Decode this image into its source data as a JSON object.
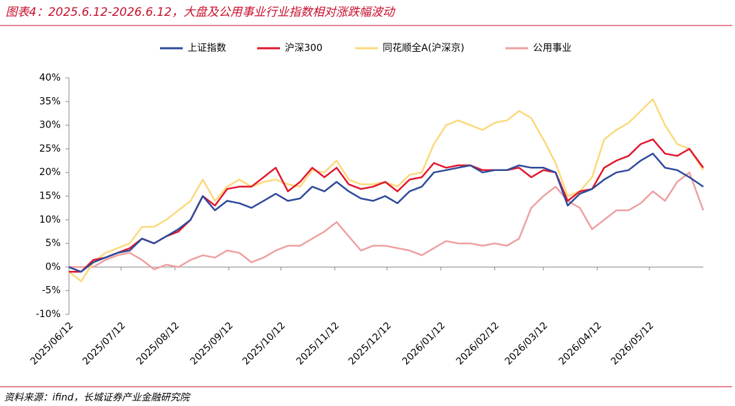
{
  "chart_data": {
    "type": "line",
    "title": "图表4：2025.6.12-2026.6.12，大盘及公用事业行业指数相对涨跌幅波动",
    "source": "资料来源：ifind，长城证券产业金融研究院",
    "x": [
      "2025/06/12",
      "2025/06/19",
      "2025/06/26",
      "2025/07/03",
      "2025/07/10",
      "2025/07/17",
      "2025/07/24",
      "2025/07/31",
      "2025/08/07",
      "2025/08/14",
      "2025/08/21",
      "2025/08/28",
      "2025/09/04",
      "2025/09/11",
      "2025/09/18",
      "2025/09/25",
      "2025/10/02",
      "2025/10/09",
      "2025/10/16",
      "2025/10/23",
      "2025/10/30",
      "2025/11/06",
      "2025/11/13",
      "2025/11/20",
      "2025/11/27",
      "2025/12/04",
      "2025/12/11",
      "2025/12/18",
      "2025/12/25",
      "2026/01/01",
      "2026/01/08",
      "2026/01/15",
      "2026/01/22",
      "2026/01/29",
      "2026/02/05",
      "2026/02/12",
      "2026/02/19",
      "2026/02/26",
      "2026/03/05",
      "2026/03/12",
      "2026/03/19",
      "2026/03/26",
      "2026/04/02",
      "2026/04/09",
      "2026/04/16",
      "2026/04/23",
      "2026/04/30",
      "2026/05/07",
      "2026/05/14",
      "2026/05/21",
      "2026/05/28",
      "2026/06/04",
      "2026/06/12"
    ],
    "xlim": [
      "2025/06/12",
      "2026/06/12"
    ],
    "xticks": [
      "2025/06/12",
      "2025/07/12",
      "2025/08/12",
      "2025/09/12",
      "2025/10/12",
      "2025/11/12",
      "2025/12/12",
      "2026/01/12",
      "2026/02/12",
      "2026/03/12",
      "2026/04/12",
      "2026/05/12"
    ],
    "ylim": [
      -10,
      40
    ],
    "yticks": [
      {
        "value": -10,
        "label": "-10%"
      },
      {
        "value": -5,
        "label": "-5%"
      },
      {
        "value": 0,
        "label": "0%"
      },
      {
        "value": 5,
        "label": "5%"
      },
      {
        "value": 10,
        "label": "10%"
      },
      {
        "value": 15,
        "label": "15%"
      },
      {
        "value": 20,
        "label": "20%"
      },
      {
        "value": 25,
        "label": "25%"
      },
      {
        "value": 30,
        "label": "30%"
      },
      {
        "value": 35,
        "label": "35%"
      },
      {
        "value": 40,
        "label": "40%"
      }
    ],
    "series": [
      {
        "name": "上证指数",
        "color": "#2e4a9a",
        "values": [
          0,
          -1,
          1,
          2,
          3,
          3.5,
          6,
          5,
          6.5,
          8,
          10,
          15,
          12,
          14,
          13.5,
          12.5,
          14,
          15.5,
          14,
          14.5,
          17,
          16,
          18,
          16,
          14.5,
          14,
          15,
          13.5,
          16,
          17,
          20,
          20.5,
          21,
          21.5,
          20,
          20.5,
          20.5,
          21.5,
          21,
          21,
          20,
          13,
          15.5,
          16.5,
          18.5,
          20,
          20.5,
          22.5,
          24,
          21,
          20.5,
          19,
          17
        ]
      },
      {
        "name": "沪深300",
        "color": "#e0182d",
        "values": [
          -1,
          -1,
          1.5,
          2,
          3,
          4,
          6,
          5,
          6.5,
          7.5,
          10,
          15,
          13,
          16.5,
          17,
          17,
          19,
          21,
          16,
          18,
          21,
          19,
          21,
          17.5,
          16.5,
          17,
          18,
          16,
          18.5,
          19,
          22,
          21,
          21.5,
          21.5,
          20.5,
          20.5,
          20.5,
          21,
          19,
          20.5,
          20,
          14,
          16,
          16.5,
          21,
          22.5,
          23.5,
          26,
          27,
          24,
          23.5,
          25,
          21
        ]
      },
      {
        "name": "同花顺全A(沪深京)",
        "color": "#fbd97a",
        "values": [
          -1,
          -3,
          1,
          3,
          4,
          5,
          8.5,
          8.5,
          10,
          12,
          14,
          18.5,
          14,
          17,
          18.5,
          17,
          18,
          18.5,
          17.5,
          17,
          20.5,
          20,
          22.5,
          18.5,
          17.5,
          17.5,
          18,
          17,
          19.5,
          20,
          26,
          30,
          31,
          30,
          29,
          30.5,
          31,
          33,
          31.5,
          27,
          22,
          15,
          16,
          19,
          27,
          29,
          30.5,
          33,
          35.5,
          30,
          26,
          25,
          20.5
        ]
      },
      {
        "name": "公用事业",
        "color": "#eea0a0",
        "values": [
          0,
          0,
          0,
          1.5,
          2.5,
          3,
          1.5,
          -0.5,
          0.5,
          0,
          1.5,
          2.5,
          2,
          3.5,
          3,
          1,
          2,
          3.5,
          4.5,
          4.5,
          6,
          7.5,
          9.5,
          6.5,
          3.5,
          4.5,
          4.5,
          4,
          3.5,
          2.5,
          4,
          5.5,
          5,
          5,
          4.5,
          5,
          4.5,
          6,
          12.5,
          15,
          17,
          14,
          12.5,
          8,
          10,
          12,
          12,
          13.5,
          16,
          14,
          18,
          20,
          12
        ]
      }
    ],
    "legend": "top"
  }
}
